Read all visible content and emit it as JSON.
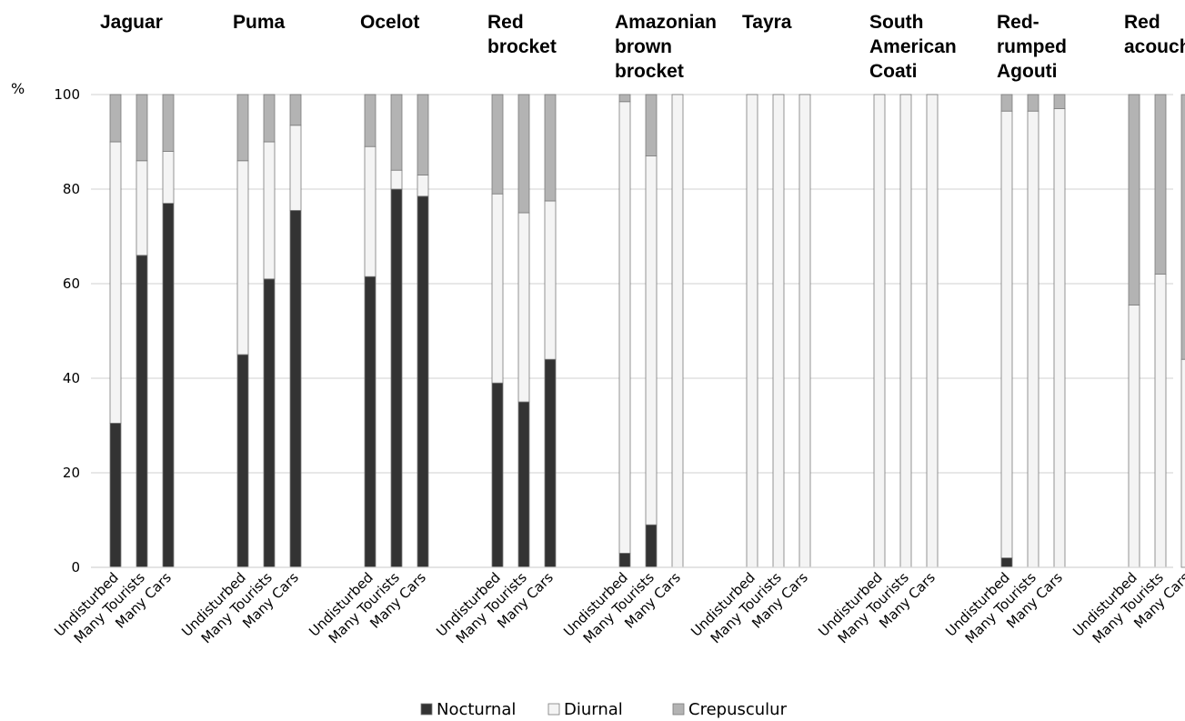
{
  "chart_data": {
    "type": "bar",
    "stacked": true,
    "y_unit": "%",
    "ylim": [
      0,
      100
    ],
    "yticks": [
      "0",
      "20",
      "40",
      "60",
      "80",
      "100"
    ],
    "grid": true,
    "legend_position": "bottom",
    "conditions": [
      "Undisturbed",
      "Many Tourists",
      "Many Cars"
    ],
    "series": [
      {
        "name": "Nocturnal",
        "color": "#333333"
      },
      {
        "name": "Diurnal",
        "color": "#f4f4f4"
      },
      {
        "name": "Crepusculur",
        "color": "#b3b3b3"
      }
    ],
    "groups": [
      {
        "title": [
          "Jaguar"
        ],
        "bars": [
          [
            30.5,
            59.5,
            10.0
          ],
          [
            66.0,
            20.0,
            14.0
          ],
          [
            77.0,
            11.0,
            12.0
          ]
        ]
      },
      {
        "title": [
          "Puma"
        ],
        "bars": [
          [
            45.0,
            41.0,
            14.0
          ],
          [
            61.0,
            29.0,
            10.0
          ],
          [
            75.5,
            18.0,
            6.5
          ]
        ]
      },
      {
        "title": [
          "Ocelot"
        ],
        "bars": [
          [
            61.5,
            27.5,
            11.0
          ],
          [
            80.0,
            4.0,
            16.0
          ],
          [
            78.5,
            4.5,
            17.0
          ]
        ]
      },
      {
        "title": [
          "Red",
          "brocket"
        ],
        "bars": [
          [
            39.0,
            40.0,
            21.0
          ],
          [
            35.0,
            40.0,
            25.0
          ],
          [
            44.0,
            33.5,
            22.5
          ]
        ]
      },
      {
        "title": [
          "Amazonian",
          "brown",
          "brocket"
        ],
        "bars": [
          [
            3.0,
            95.5,
            1.5
          ],
          [
            9.0,
            78.0,
            13.0
          ],
          [
            0.0,
            100.0,
            0.0
          ]
        ]
      },
      {
        "title": [
          "Tayra"
        ],
        "bars": [
          [
            0.0,
            100.0,
            0.0
          ],
          [
            0.0,
            100.0,
            0.0
          ],
          [
            0.0,
            100.0,
            0.0
          ]
        ]
      },
      {
        "title": [
          "South",
          "American",
          "Coati"
        ],
        "bars": [
          [
            0.0,
            100.0,
            0.0
          ],
          [
            0.0,
            100.0,
            0.0
          ],
          [
            0.0,
            100.0,
            0.0
          ]
        ]
      },
      {
        "title": [
          "Red-",
          "rumped",
          "Agouti"
        ],
        "bars": [
          [
            2.0,
            94.5,
            3.5
          ],
          [
            0.0,
            96.5,
            3.5
          ],
          [
            0.0,
            97.0,
            3.0
          ]
        ]
      },
      {
        "title": [
          "Red",
          "acouchi"
        ],
        "bars": [
          [
            0.0,
            55.5,
            44.5
          ],
          [
            0.0,
            62.0,
            38.0
          ],
          [
            0.0,
            44.0,
            56.0
          ]
        ]
      }
    ]
  }
}
